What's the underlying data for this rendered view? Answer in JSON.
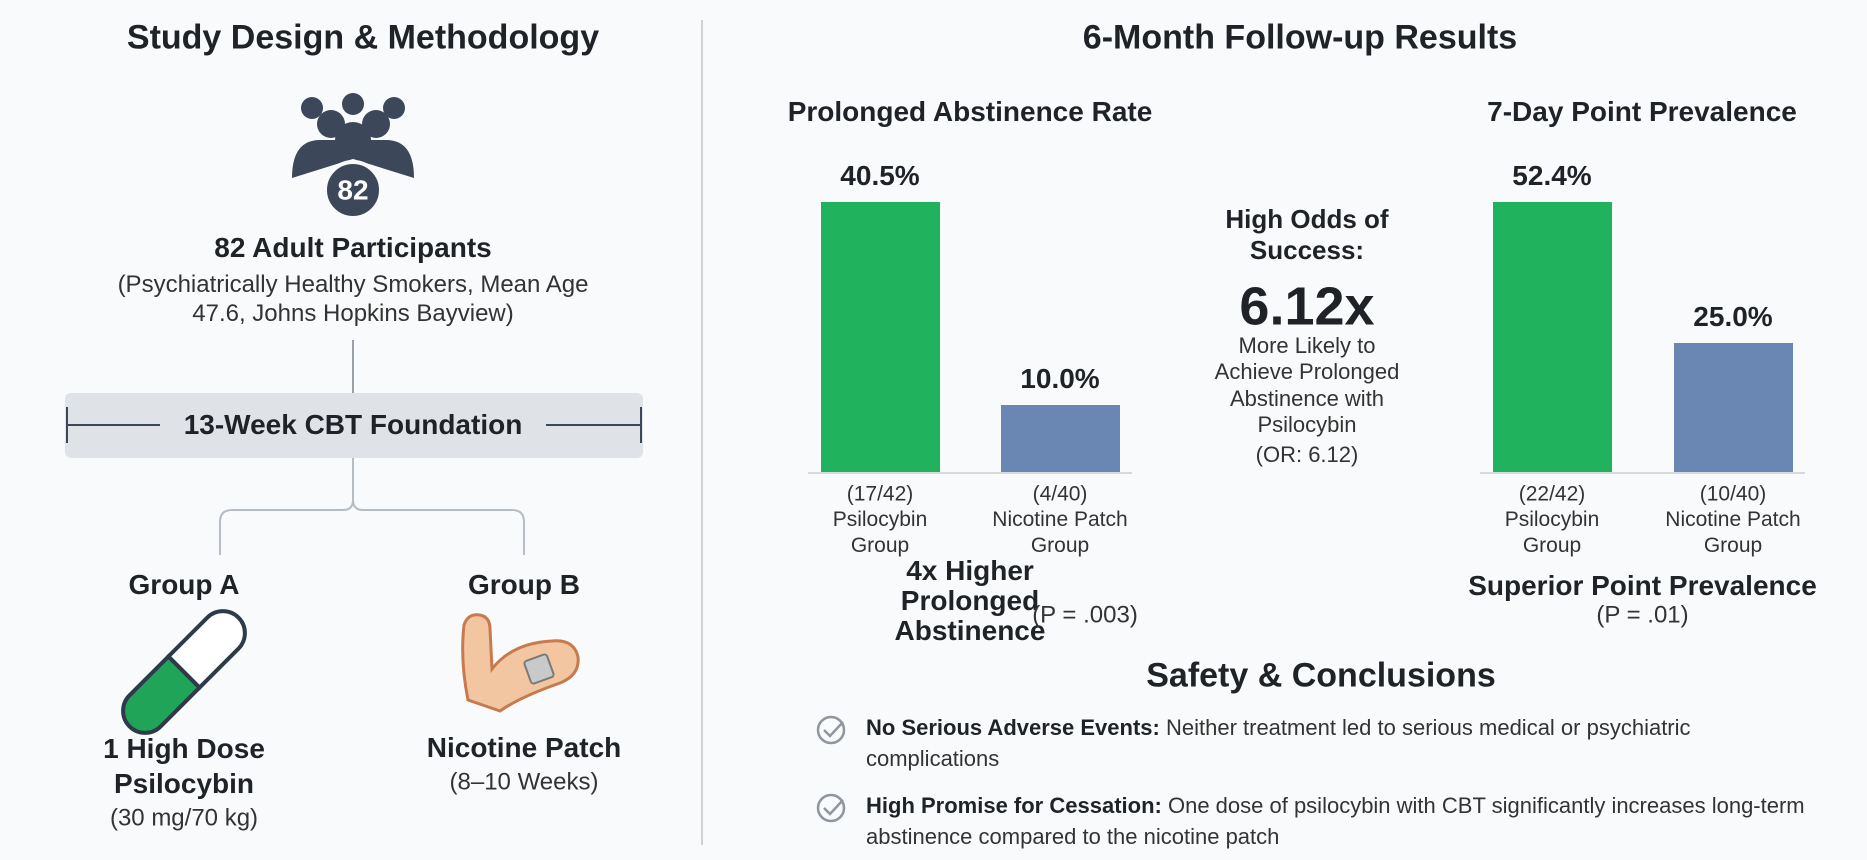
{
  "left": {
    "title": "Study Design & Methodology",
    "participants": {
      "icon_count": "82",
      "heading": "82 Adult Participants",
      "detail": "(Psychiatrically Healthy Smokers, Mean Age 47.6, Johns Hopkins Bayview)"
    },
    "foundation": "13-Week CBT Foundation",
    "groups": [
      {
        "label": "Group A",
        "treatment": "1 High Dose Psilocybin",
        "detail": "(30 mg/70 kg)"
      },
      {
        "label": "Group B",
        "treatment": "Nicotine Patch",
        "detail": "(8–10 Weeks)"
      }
    ]
  },
  "right": {
    "title": "6-Month Follow-up Results",
    "odds": {
      "heading": "High Odds of Success:",
      "value": "6.12x",
      "text": "More Likely to Achieve Prolonged Abstinence with Psilocybin",
      "note": "(OR: 6.12)"
    }
  },
  "chart_data": [
    {
      "type": "bar",
      "title": "Prolonged Abstinence Rate",
      "categories": [
        "Psilocybin Group",
        "Nicotine Patch Group"
      ],
      "counts": [
        "(17/42)",
        "(4/40)"
      ],
      "values": [
        40.5,
        10.0
      ],
      "value_labels": [
        "40.5%",
        "10.0%"
      ],
      "colors": [
        "#20b25c",
        "#6a86b3"
      ],
      "caption": "4x Higher Prolonged Abstinence",
      "caption_stat": "(P = .003)"
    },
    {
      "type": "bar",
      "title": "7-Day Point Prevalence",
      "categories": [
        "Psilocybin Group",
        "Nicotine Patch Group"
      ],
      "counts": [
        "(22/42)",
        "(10/40)"
      ],
      "values": [
        52.4,
        25.0
      ],
      "value_labels": [
        "52.4%",
        "25.0%"
      ],
      "colors": [
        "#20b25c",
        "#6a86b3"
      ],
      "caption": "Superior Point Prevalence",
      "caption_stat": "(P = .01)"
    }
  ],
  "safety": {
    "title": "Safety & Conclusions",
    "items": [
      {
        "heading": "No Serious Adverse Events:",
        "text": "Neither treatment led to serious medical or psychiatric complications"
      },
      {
        "heading": "High Promise for Cessation:",
        "text": "One dose of psilocybin with CBT significantly increases long-term abstinence compared to the nicotine patch"
      }
    ]
  }
}
